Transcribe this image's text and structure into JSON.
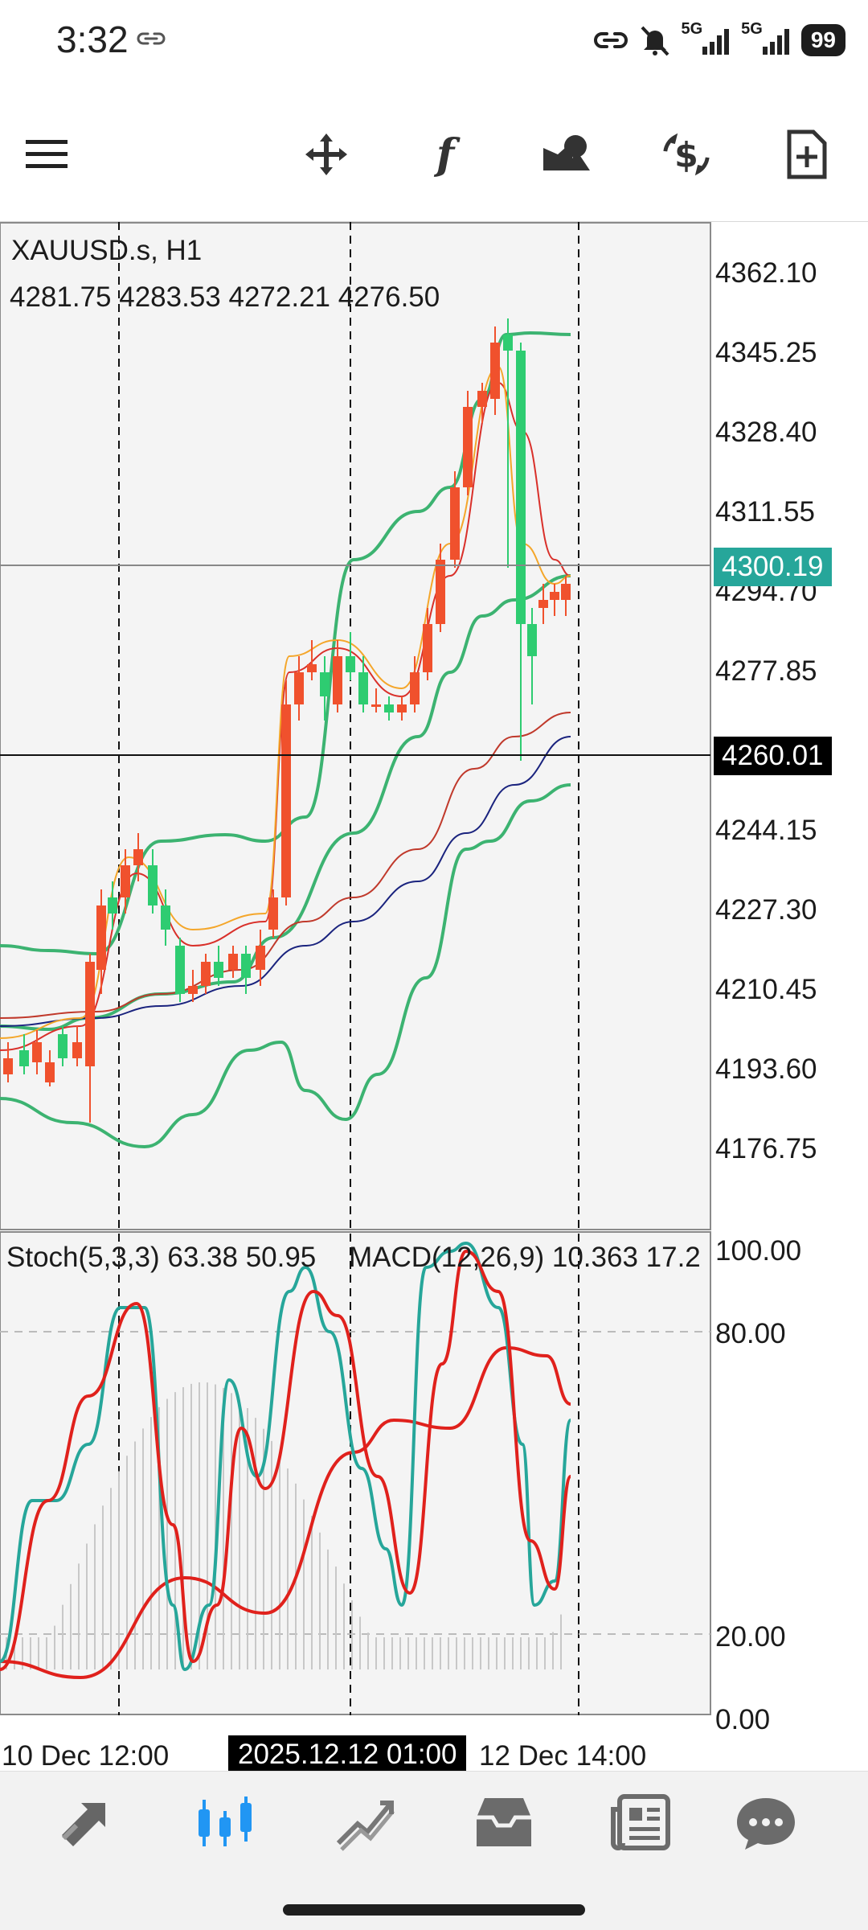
{
  "status_bar": {
    "time": "3:32",
    "battery": "99",
    "signal_1_label": "5G",
    "signal_2_label": "5G",
    "icons": [
      "link-icon",
      "hotspot-icon",
      "mute-icon",
      "signal-icon",
      "signal-icon",
      "battery-icon"
    ]
  },
  "toolbar": {
    "buttons": [
      "menu-icon",
      "crosshair-move-icon",
      "function-icon",
      "objects-icon",
      "trade-icon",
      "new-order-icon"
    ]
  },
  "chart": {
    "symbol": "XAUUSD.s, H1",
    "ohlc": "4281.75 4283.53 4272.21 4276.50",
    "price_axis": [
      "4362.10",
      "4345.25",
      "4328.40",
      "4311.55",
      "4294.70",
      "4277.85",
      "4244.15",
      "4227.30",
      "4210.45",
      "4193.60",
      "4176.75"
    ],
    "current_price": "4300.19",
    "crosshair_price": "4260.01",
    "indicator_label_stoch": "Stoch(5,3,3) 63.38 50.95",
    "indicator_label_macd": "MACD(12,26,9) 10.363 17.2",
    "indicator_axis": [
      "100.00",
      "80.00",
      "20.00",
      "0.00"
    ],
    "time_axis_left": "10 Dec 12:00",
    "time_axis_crosshair": "2025.12.12 01:00",
    "time_axis_right": "12 Dec 14:00",
    "colors": {
      "bull": "#2ecc71",
      "bear": "#f0512d",
      "bollinger": "#3cb371",
      "ma_fast": "#f4a62a",
      "ma_red": "#d9302a",
      "ma_slow": "#8b1a1a",
      "ma_blue": "#1a237e",
      "stoch_main": "#26a69a",
      "stoch_signal": "#e0211c",
      "price_badge": "#26a69a"
    }
  },
  "bottom_nav": {
    "items": [
      "quotes-icon",
      "chart-icon",
      "trade-icon",
      "history-icon",
      "news-icon",
      "messages-icon"
    ],
    "active": "chart-icon"
  }
}
